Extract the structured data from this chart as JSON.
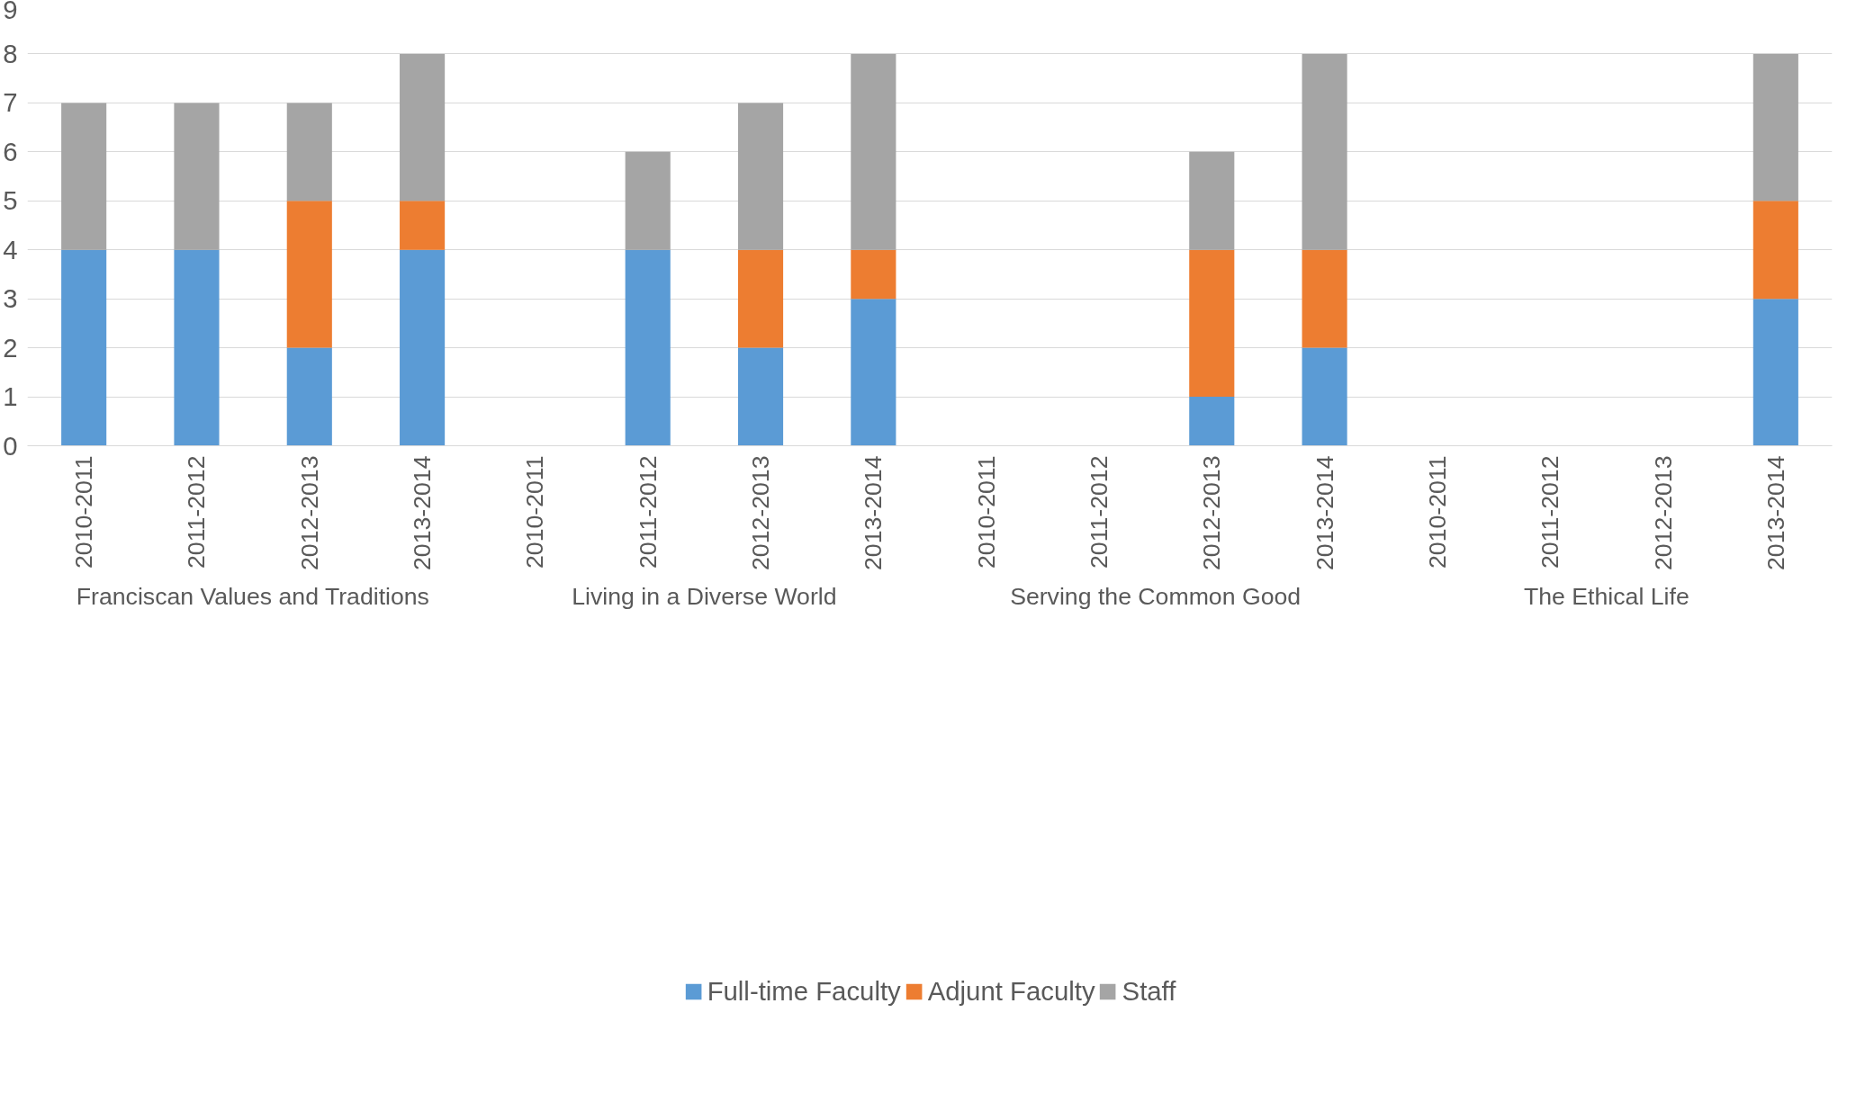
{
  "chart_data": {
    "type": "bar",
    "stacked": true,
    "categories": [
      "2010-2011",
      "2011-2012",
      "2012-2013",
      "2013-2014",
      "2010-2011",
      "2011-2012",
      "2012-2013",
      "2013-2014",
      "2010-2011",
      "2011-2012",
      "2012-2013",
      "2013-2014",
      "2010-2011",
      "2011-2012",
      "2012-2013",
      "2013-2014"
    ],
    "series": [
      {
        "name": "Full-time Faculty",
        "color": "#5b9bd5",
        "values": [
          4,
          4,
          2,
          4,
          null,
          4,
          2,
          3,
          null,
          null,
          1,
          2,
          null,
          null,
          null,
          3
        ]
      },
      {
        "name": "Adjunt Faculty",
        "color": "#ed7d31",
        "values": [
          null,
          null,
          3,
          1,
          null,
          null,
          2,
          1,
          null,
          null,
          3,
          2,
          null,
          null,
          null,
          2
        ]
      },
      {
        "name": "Staff",
        "color": "#a5a5a5",
        "values": [
          3,
          3,
          2,
          3,
          null,
          2,
          3,
          4,
          null,
          null,
          2,
          4,
          null,
          null,
          null,
          3
        ]
      }
    ],
    "annotations": [
      "Franciscan Values and Traditions",
      "Living in a Diverse World",
      "Serving the Common Good",
      "The Ethical Life"
    ],
    "ylim": [
      0,
      9
    ],
    "yticks": [
      0,
      1,
      2,
      3,
      4,
      5,
      6,
      7,
      8,
      9
    ],
    "grid": "y",
    "legend": "bottom"
  }
}
